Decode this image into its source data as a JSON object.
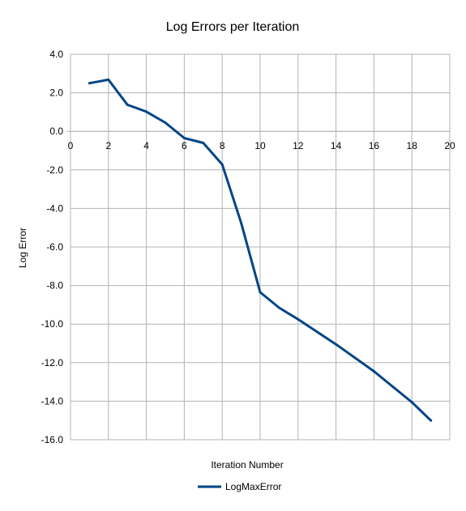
{
  "chart_data": {
    "type": "line",
    "title": "Log Errors per Iteration",
    "xlabel": "Iteration Number",
    "ylabel": "Log Error",
    "xlim": [
      0,
      20
    ],
    "ylim": [
      -16,
      4
    ],
    "x_ticks": [
      0,
      2,
      4,
      6,
      8,
      10,
      12,
      14,
      16,
      18,
      20
    ],
    "y_ticks": [
      "4.0",
      "2.0",
      "0.0",
      "-2.0",
      "-4.0",
      "-6.0",
      "-8.0",
      "-10.0",
      "-12.0",
      "-14.0",
      "-16.0"
    ],
    "grid": true,
    "legend_position": "bottom",
    "series": [
      {
        "name": "LogMaxError",
        "color": "#004586",
        "x": [
          1,
          2,
          3,
          4,
          5,
          6,
          7,
          8,
          9,
          10,
          11,
          12,
          13,
          14,
          15,
          16,
          17,
          18,
          19
        ],
        "y": [
          2.5,
          2.68,
          1.38,
          1.02,
          0.45,
          -0.35,
          -0.6,
          -1.72,
          -4.75,
          -8.35,
          -9.15,
          -9.75,
          -10.4,
          -11.05,
          -11.75,
          -12.45,
          -13.25,
          -14.05,
          -15.0
        ]
      }
    ]
  }
}
